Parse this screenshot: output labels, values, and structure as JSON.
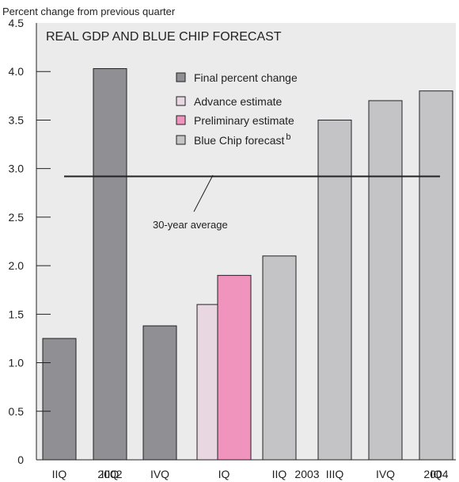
{
  "chart_data": {
    "type": "bar",
    "title": "REAL GDP AND BLUE CHIP FORECAST",
    "ylabel": "Percent change from previous quarter",
    "ylim": [
      0,
      4.5
    ],
    "yticks": [
      "0",
      "0.5",
      "1.0",
      "1.5",
      "2.0",
      "2.5",
      "3.0",
      "3.5",
      "4.0",
      "4.5"
    ],
    "categories": [
      "IIQ",
      "IIIQ",
      "IVQ",
      "IQ",
      "IIQ",
      "IIIQ",
      "IVQ",
      "IQ"
    ],
    "years": [
      {
        "label": "2002",
        "under": 1
      },
      {
        "label": "2003",
        "under": 4.5
      },
      {
        "label": "2004",
        "under": 7
      }
    ],
    "legend": [
      {
        "label": "Final percent change",
        "color": "#8f8f94"
      },
      {
        "label": "Advance estimate",
        "color": "#e8d6e1"
      },
      {
        "label": "Preliminary estimate",
        "color": "#f094bd"
      },
      {
        "label": "Blue Chip forecast",
        "sup": "b",
        "color": "#c4c4c6"
      }
    ],
    "bars": [
      {
        "category": 0,
        "series": "Final percent change",
        "value": 1.25
      },
      {
        "category": 1,
        "series": "Final percent change",
        "value": 4.03
      },
      {
        "category": 2,
        "series": "Final percent change",
        "value": 1.38
      },
      {
        "category": 3,
        "series": "Advance estimate",
        "value": 1.6
      },
      {
        "category": 3,
        "series": "Preliminary estimate",
        "value": 1.9
      },
      {
        "category": 4,
        "series": "Blue Chip forecast",
        "value": 2.1
      },
      {
        "category": 5,
        "series": "Blue Chip forecast",
        "value": 3.5
      },
      {
        "category": 6,
        "series": "Blue Chip forecast",
        "value": 3.7
      },
      {
        "category": 7,
        "series": "Blue Chip forecast",
        "value": 3.8
      }
    ],
    "reference_line": {
      "label": "30-year average",
      "value": 2.92
    },
    "plot_background": "#ebebeb",
    "grid": false
  }
}
